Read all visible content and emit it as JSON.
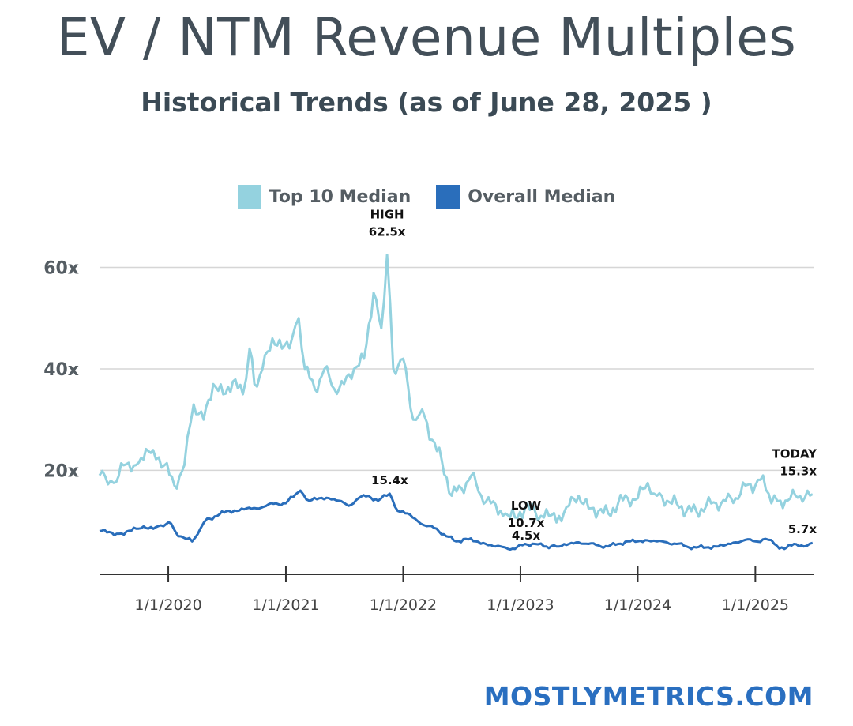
{
  "header": {
    "title": "EV / NTM Revenue Multiples",
    "subtitle": "Historical Trends (as of June 28, 2025 )"
  },
  "brand": "MOSTLYMETRICS.COM",
  "chart_data": {
    "type": "line",
    "title": "EV / NTM Revenue Multiples",
    "subtitle": "Historical Trends (as of June 28, 2025 )",
    "xlabel": "",
    "ylabel": "",
    "x_unit": "date",
    "x_ticks": [
      "1/1/2020",
      "1/1/2021",
      "1/1/2022",
      "1/1/2023",
      "1/1/2024",
      "1/1/2025"
    ],
    "y_ticks": [
      "20x",
      "40x",
      "60x"
    ],
    "y_tick_values": [
      20,
      40,
      60
    ],
    "xlim": [
      "2019-06-01",
      "2025-07-01"
    ],
    "ylim": [
      -0.5,
      66
    ],
    "grid": "horizontal",
    "legend_position": "top-center",
    "series": [
      {
        "name": "Top 10 Median",
        "color": "#94d2df",
        "points": [
          [
            "2019-06-01",
            19
          ],
          [
            "2019-07-15",
            17.5
          ],
          [
            "2019-08-15",
            21
          ],
          [
            "2019-10-01",
            21.5
          ],
          [
            "2019-11-15",
            24
          ],
          [
            "2019-12-20",
            21
          ],
          [
            "2020-01-20",
            17
          ],
          [
            "2020-02-20",
            21
          ],
          [
            "2020-03-20",
            33
          ],
          [
            "2020-04-20",
            30
          ],
          [
            "2020-05-20",
            37
          ],
          [
            "2020-06-20",
            35
          ],
          [
            "2020-07-20",
            37.5
          ],
          [
            "2020-08-20",
            35
          ],
          [
            "2020-09-10",
            44
          ],
          [
            "2020-09-25",
            37
          ],
          [
            "2020-10-20",
            40
          ],
          [
            "2020-11-20",
            46
          ],
          [
            "2020-12-20",
            44
          ],
          [
            "2021-01-20",
            46
          ],
          [
            "2021-02-10",
            50
          ],
          [
            "2021-03-01",
            40
          ],
          [
            "2021-04-01",
            36
          ],
          [
            "2021-05-01",
            40
          ],
          [
            "2021-06-01",
            36
          ],
          [
            "2021-07-01",
            37
          ],
          [
            "2021-08-01",
            40
          ],
          [
            "2021-09-01",
            42
          ],
          [
            "2021-10-01",
            55
          ],
          [
            "2021-10-25",
            48
          ],
          [
            "2021-11-12",
            62.5
          ],
          [
            "2021-12-01",
            40
          ],
          [
            "2022-01-01",
            42
          ],
          [
            "2022-02-01",
            30
          ],
          [
            "2022-03-01",
            32
          ],
          [
            "2022-04-01",
            26
          ],
          [
            "2022-05-01",
            22
          ],
          [
            "2022-06-01",
            15
          ],
          [
            "2022-07-01",
            16.5
          ],
          [
            "2022-08-01",
            19
          ],
          [
            "2022-09-01",
            15
          ],
          [
            "2022-10-01",
            13.5
          ],
          [
            "2022-11-15",
            11.5
          ],
          [
            "2022-12-15",
            10.7
          ],
          [
            "2023-01-15",
            12.5
          ],
          [
            "2023-02-15",
            12
          ],
          [
            "2023-03-15",
            10.7
          ],
          [
            "2023-05-01",
            11
          ],
          [
            "2023-06-01",
            13
          ],
          [
            "2023-07-01",
            15
          ],
          [
            "2023-08-01",
            12.5
          ],
          [
            "2023-09-01",
            12
          ],
          [
            "2023-10-01",
            11.5
          ],
          [
            "2023-11-01",
            13.5
          ],
          [
            "2023-12-01",
            14.5
          ],
          [
            "2024-01-01",
            14.5
          ],
          [
            "2024-02-01",
            17.5
          ],
          [
            "2024-03-01",
            15
          ],
          [
            "2024-04-01",
            14
          ],
          [
            "2024-05-01",
            13.5
          ],
          [
            "2024-06-01",
            12
          ],
          [
            "2024-07-01",
            12
          ],
          [
            "2024-08-01",
            13
          ],
          [
            "2024-09-01",
            13.5
          ],
          [
            "2024-10-01",
            14
          ],
          [
            "2024-11-01",
            14.5
          ],
          [
            "2024-12-01",
            17
          ],
          [
            "2025-01-01",
            17
          ],
          [
            "2025-01-25",
            19
          ],
          [
            "2025-02-20",
            13.5
          ],
          [
            "2025-03-20",
            14
          ],
          [
            "2025-04-20",
            14.5
          ],
          [
            "2025-05-20",
            15
          ],
          [
            "2025-06-28",
            15.3
          ]
        ]
      },
      {
        "name": "Overall Median",
        "color": "#2a6ebb",
        "points": [
          [
            "2019-06-01",
            8
          ],
          [
            "2019-08-01",
            7.5
          ],
          [
            "2019-10-01",
            8.5
          ],
          [
            "2019-12-01",
            9
          ],
          [
            "2020-01-10",
            9.5
          ],
          [
            "2020-02-01",
            7
          ],
          [
            "2020-03-15",
            6
          ],
          [
            "2020-04-10",
            8.5
          ],
          [
            "2020-05-01",
            10.5
          ],
          [
            "2020-06-01",
            11
          ],
          [
            "2020-07-01",
            12
          ],
          [
            "2020-08-01",
            12
          ],
          [
            "2020-09-01",
            12.5
          ],
          [
            "2020-10-01",
            12.5
          ],
          [
            "2020-11-01",
            13
          ],
          [
            "2020-12-01",
            13.5
          ],
          [
            "2021-01-01",
            13.5
          ],
          [
            "2021-02-15",
            16
          ],
          [
            "2021-03-15",
            14
          ],
          [
            "2021-04-15",
            14.5
          ],
          [
            "2021-05-15",
            14.5
          ],
          [
            "2021-06-15",
            14
          ],
          [
            "2021-07-15",
            13
          ],
          [
            "2021-08-15",
            14.5
          ],
          [
            "2021-09-15",
            15
          ],
          [
            "2021-10-15",
            14
          ],
          [
            "2021-11-20",
            15.4
          ],
          [
            "2021-12-15",
            12
          ],
          [
            "2022-01-15",
            11.5
          ],
          [
            "2022-02-15",
            10
          ],
          [
            "2022-03-15",
            9
          ],
          [
            "2022-04-15",
            8.5
          ],
          [
            "2022-05-15",
            7
          ],
          [
            "2022-06-15",
            6
          ],
          [
            "2022-07-15",
            6.5
          ],
          [
            "2022-08-15",
            6
          ],
          [
            "2022-09-15",
            5.5
          ],
          [
            "2022-10-15",
            5
          ],
          [
            "2022-11-15",
            4.8
          ],
          [
            "2022-12-15",
            4.5
          ],
          [
            "2023-01-15",
            5.5
          ],
          [
            "2023-02-15",
            5.5
          ],
          [
            "2023-03-15",
            5
          ],
          [
            "2023-05-01",
            5
          ],
          [
            "2023-06-01",
            5.5
          ],
          [
            "2023-07-01",
            5.8
          ],
          [
            "2023-08-01",
            5.5
          ],
          [
            "2023-09-01",
            5.2
          ],
          [
            "2023-10-01",
            5
          ],
          [
            "2023-11-01",
            5.5
          ],
          [
            "2023-12-01",
            6
          ],
          [
            "2024-01-01",
            6
          ],
          [
            "2024-02-01",
            6.2
          ],
          [
            "2024-03-01",
            6
          ],
          [
            "2024-04-01",
            5.8
          ],
          [
            "2024-05-01",
            5.5
          ],
          [
            "2024-06-01",
            5
          ],
          [
            "2024-07-01",
            4.8
          ],
          [
            "2024-08-01",
            4.8
          ],
          [
            "2024-09-01",
            5
          ],
          [
            "2024-10-01",
            5.3
          ],
          [
            "2024-11-01",
            5.8
          ],
          [
            "2024-12-01",
            6.3
          ],
          [
            "2025-01-01",
            6
          ],
          [
            "2025-02-01",
            6.5
          ],
          [
            "2025-03-01",
            5.5
          ],
          [
            "2025-04-01",
            4.5
          ],
          [
            "2025-05-01",
            5.5
          ],
          [
            "2025-06-01",
            5
          ],
          [
            "2025-06-28",
            5.7
          ]
        ]
      }
    ],
    "annotations": [
      {
        "series": 0,
        "x": "2021-11-12",
        "y": 62.5,
        "label": "HIGH",
        "value": "62.5x"
      },
      {
        "series": 1,
        "x": "2021-11-20",
        "y": 15.4,
        "label": "",
        "value": "15.4x"
      },
      {
        "series": 0,
        "x": "2022-12-15",
        "y": 10.7,
        "label": "LOW",
        "value": "10.7x"
      },
      {
        "series": 1,
        "x": "2022-12-15",
        "y": 4.5,
        "label": "",
        "value": "4.5x"
      },
      {
        "series": 0,
        "x": "2025-06-28",
        "y": 15.3,
        "label": "TODAY",
        "value": "15.3x"
      },
      {
        "series": 1,
        "x": "2025-06-28",
        "y": 5.7,
        "label": "",
        "value": "5.7x"
      }
    ]
  }
}
